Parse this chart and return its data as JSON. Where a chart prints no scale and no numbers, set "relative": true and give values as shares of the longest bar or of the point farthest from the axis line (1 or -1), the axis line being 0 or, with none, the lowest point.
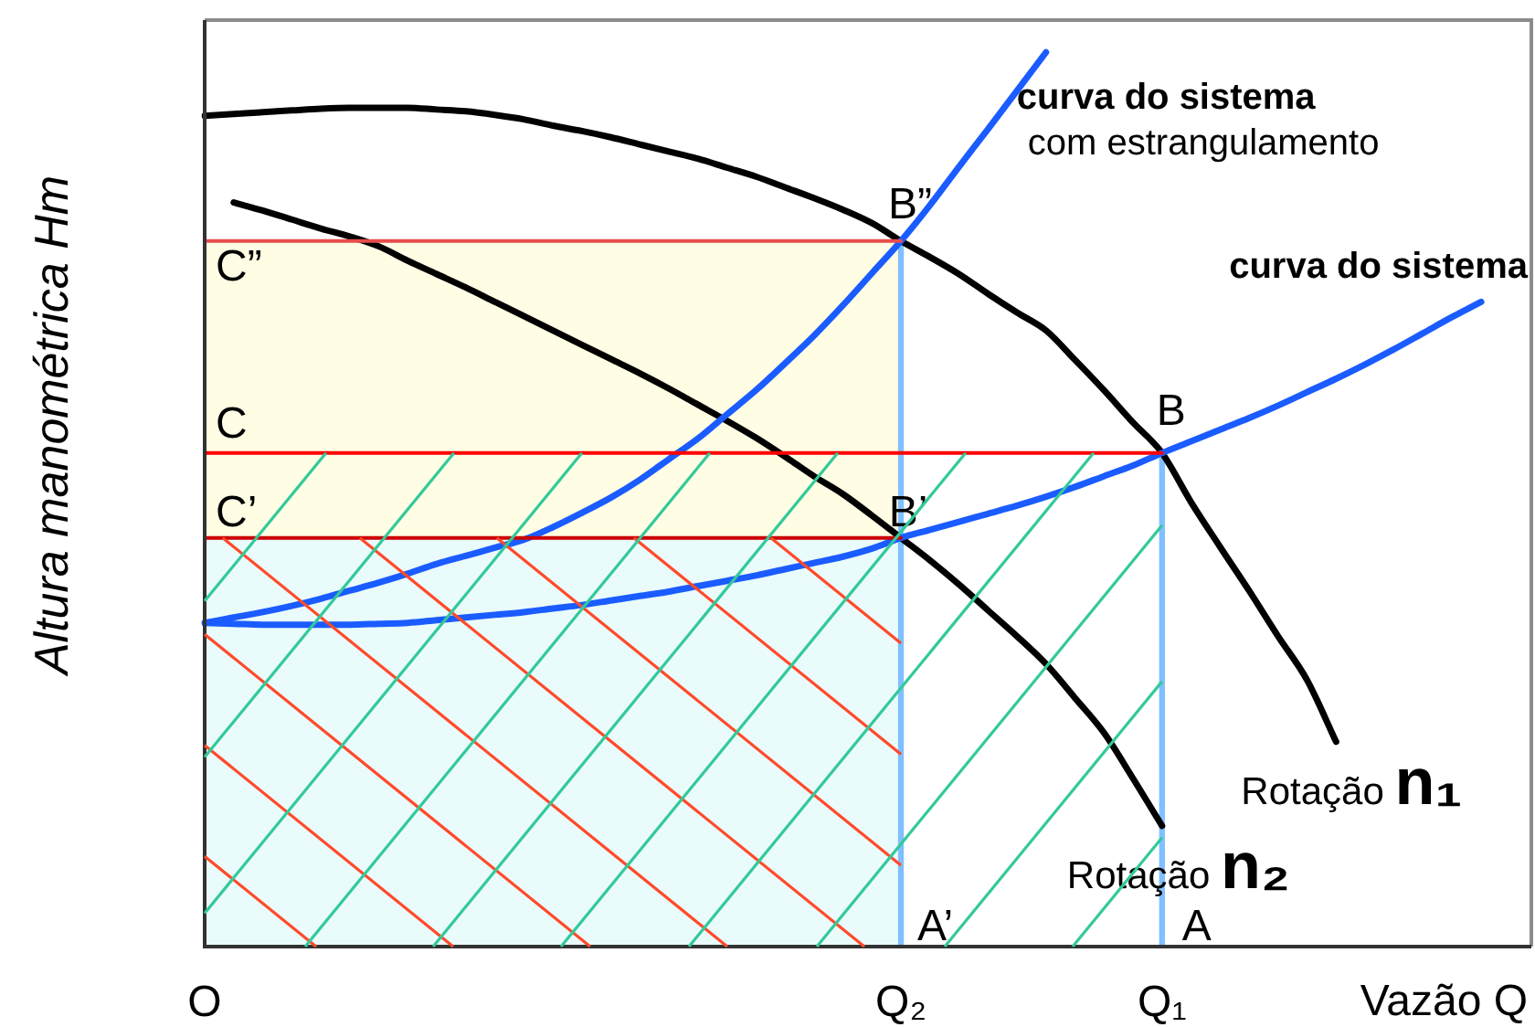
{
  "chart_data": {
    "type": "line",
    "relative": true,
    "marker": "none",
    "xlabel": "Vazão Q",
    "ylabel": "Altura manométrica Hm",
    "categories": [
      "O",
      null,
      null,
      null,
      null,
      null,
      null,
      null,
      null,
      null,
      null,
      null,
      null,
      null,
      null,
      null,
      null,
      null,
      null,
      null,
      null,
      null,
      null,
      null,
      "Q₂",
      null,
      null,
      null,
      null,
      null,
      null,
      null,
      null,
      "Q₁",
      null,
      null,
      null,
      null,
      null,
      null,
      null,
      null,
      null,
      null,
      null,
      null
    ],
    "series": [
      {
        "type": "bar",
        "color": "#80c0ff",
        "values": [
          null,
          null,
          null,
          null,
          null,
          null,
          null,
          null,
          null,
          null,
          null,
          null,
          null,
          null,
          null,
          null,
          null,
          null,
          null,
          null,
          null,
          null,
          null,
          null,
          0.789,
          null,
          null,
          null,
          null,
          null,
          null,
          null,
          null,
          0.552,
          null,
          null,
          null,
          null,
          null,
          null,
          null,
          null,
          null,
          null,
          null,
          null
        ]
      },
      {
        "name": "Rotação n₁",
        "color": "#000000",
        "values": [
          0.929,
          0.931,
          0.933,
          0.935,
          0.937,
          0.938,
          0.938,
          0.938,
          0.936,
          0.934,
          0.93,
          0.925,
          0.918,
          0.912,
          0.905,
          0.897,
          0.889,
          0.881,
          0.871,
          0.861,
          0.849,
          0.837,
          0.824,
          0.809,
          0.789,
          0.771,
          0.752,
          0.73,
          0.709,
          0.689,
          0.656,
          0.622,
          0.586,
          0.552,
          0.497,
          0.447,
          0.398,
          0.347,
          0.298,
          0.229,
          null,
          null,
          null,
          null,
          null,
          null
        ]
      },
      {
        "name": "Rotação n₂",
        "color": "#000000",
        "values": [
          null,
          0.832,
          0.823,
          0.813,
          0.803,
          0.794,
          0.783,
          0.767,
          0.752,
          0.737,
          0.721,
          0.705,
          0.689,
          0.673,
          0.657,
          0.641,
          0.624,
          0.606,
          0.588,
          0.569,
          0.548,
          0.526,
          0.506,
          0.482,
          0.457,
          0.432,
          0.405,
          0.376,
          0.347,
          0.316,
          0.278,
          0.239,
          0.188,
          0.135,
          null,
          null,
          null,
          null,
          null,
          null,
          null,
          null,
          null,
          null,
          null,
          null
        ]
      },
      {
        "name": "curva do sistema",
        "color": "#1a5cff",
        "values": [
          0.362,
          0.361,
          0.36,
          0.36,
          0.36,
          0.36,
          0.361,
          0.362,
          0.365,
          0.368,
          0.371,
          0.374,
          0.378,
          0.382,
          0.387,
          0.392,
          0.397,
          0.403,
          0.409,
          0.415,
          0.422,
          0.429,
          0.436,
          0.445,
          0.457,
          0.466,
          0.475,
          0.484,
          0.493,
          0.503,
          0.514,
          0.526,
          0.538,
          0.552,
          0.565,
          0.578,
          0.591,
          0.605,
          0.62,
          0.635,
          0.651,
          0.668,
          0.686,
          0.704,
          0.721,
          null
        ]
      },
      {
        "name": "curva do sistema\ncom estrangulamento",
        "color": "#1a5cff",
        "values": [
          0.362,
          0.368,
          0.374,
          0.381,
          0.389,
          0.398,
          0.407,
          0.417,
          0.428,
          0.437,
          0.446,
          0.455,
          0.469,
          0.485,
          0.502,
          0.522,
          0.545,
          0.568,
          0.595,
          0.622,
          0.652,
          0.683,
          0.717,
          0.753,
          0.789,
          0.829,
          0.872,
          0.914,
          0.957,
          1,
          null,
          null,
          null,
          null,
          null,
          null,
          null,
          null,
          null,
          null,
          null,
          null,
          null,
          null,
          null,
          null
        ]
      },
      {
        "color": "#e84c4c",
        "values": [
          0.789,
          0.789,
          0.789,
          0.789,
          0.789,
          0.789,
          0.789,
          0.789,
          0.789,
          0.789,
          0.789,
          0.789,
          0.789,
          0.789,
          0.789,
          0.789,
          0.789,
          0.789,
          0.789,
          0.789,
          0.789,
          0.789,
          0.789,
          0.789,
          0.789,
          null,
          null,
          null,
          null,
          null,
          null,
          null,
          null,
          null,
          null,
          null,
          null,
          null,
          null,
          null,
          null,
          null,
          null,
          null,
          null,
          null
        ]
      },
      {
        "color": "#ff0000",
        "values": [
          0.552,
          0.552,
          0.552,
          0.552,
          0.552,
          0.552,
          0.552,
          0.552,
          0.552,
          0.552,
          0.552,
          0.552,
          0.552,
          0.552,
          0.552,
          0.552,
          0.552,
          0.552,
          0.552,
          0.552,
          0.552,
          0.552,
          0.552,
          0.552,
          0.552,
          0.552,
          0.552,
          0.552,
          0.552,
          0.552,
          0.552,
          0.552,
          0.552,
          0.552,
          null,
          null,
          null,
          null,
          null,
          null,
          null,
          null,
          null,
          null,
          null,
          null
        ]
      },
      {
        "color": "#cc0000",
        "values": [
          0.457,
          0.457,
          0.457,
          0.457,
          0.457,
          0.457,
          0.457,
          0.457,
          0.457,
          0.457,
          0.457,
          0.457,
          0.457,
          0.457,
          0.457,
          0.457,
          0.457,
          0.457,
          0.457,
          0.457,
          0.457,
          0.457,
          0.457,
          0.457,
          0.457,
          null,
          null,
          null,
          null,
          null,
          null,
          null,
          null,
          null,
          null,
          null,
          null,
          null,
          null,
          null,
          null,
          null,
          null,
          null,
          null,
          null
        ]
      }
    ],
    "annotations": [
      {
        "text": "C”",
        "x": "O",
        "y": 0.789
      },
      {
        "text": "C",
        "x": "O",
        "y": 0.552
      },
      {
        "text": "C’",
        "x": "O",
        "y": 0.457
      },
      {
        "text": "B”",
        "x": "Q₂",
        "y": 0.789
      },
      {
        "text": "B",
        "x": "Q₁",
        "y": 0.552
      },
      {
        "text": "B’",
        "x": "Q₂",
        "y": 0.457
      },
      {
        "text": "A’",
        "x": "Q₂",
        "y": 0
      },
      {
        "text": "A",
        "x": "Q₁",
        "y": 0
      }
    ]
  }
}
